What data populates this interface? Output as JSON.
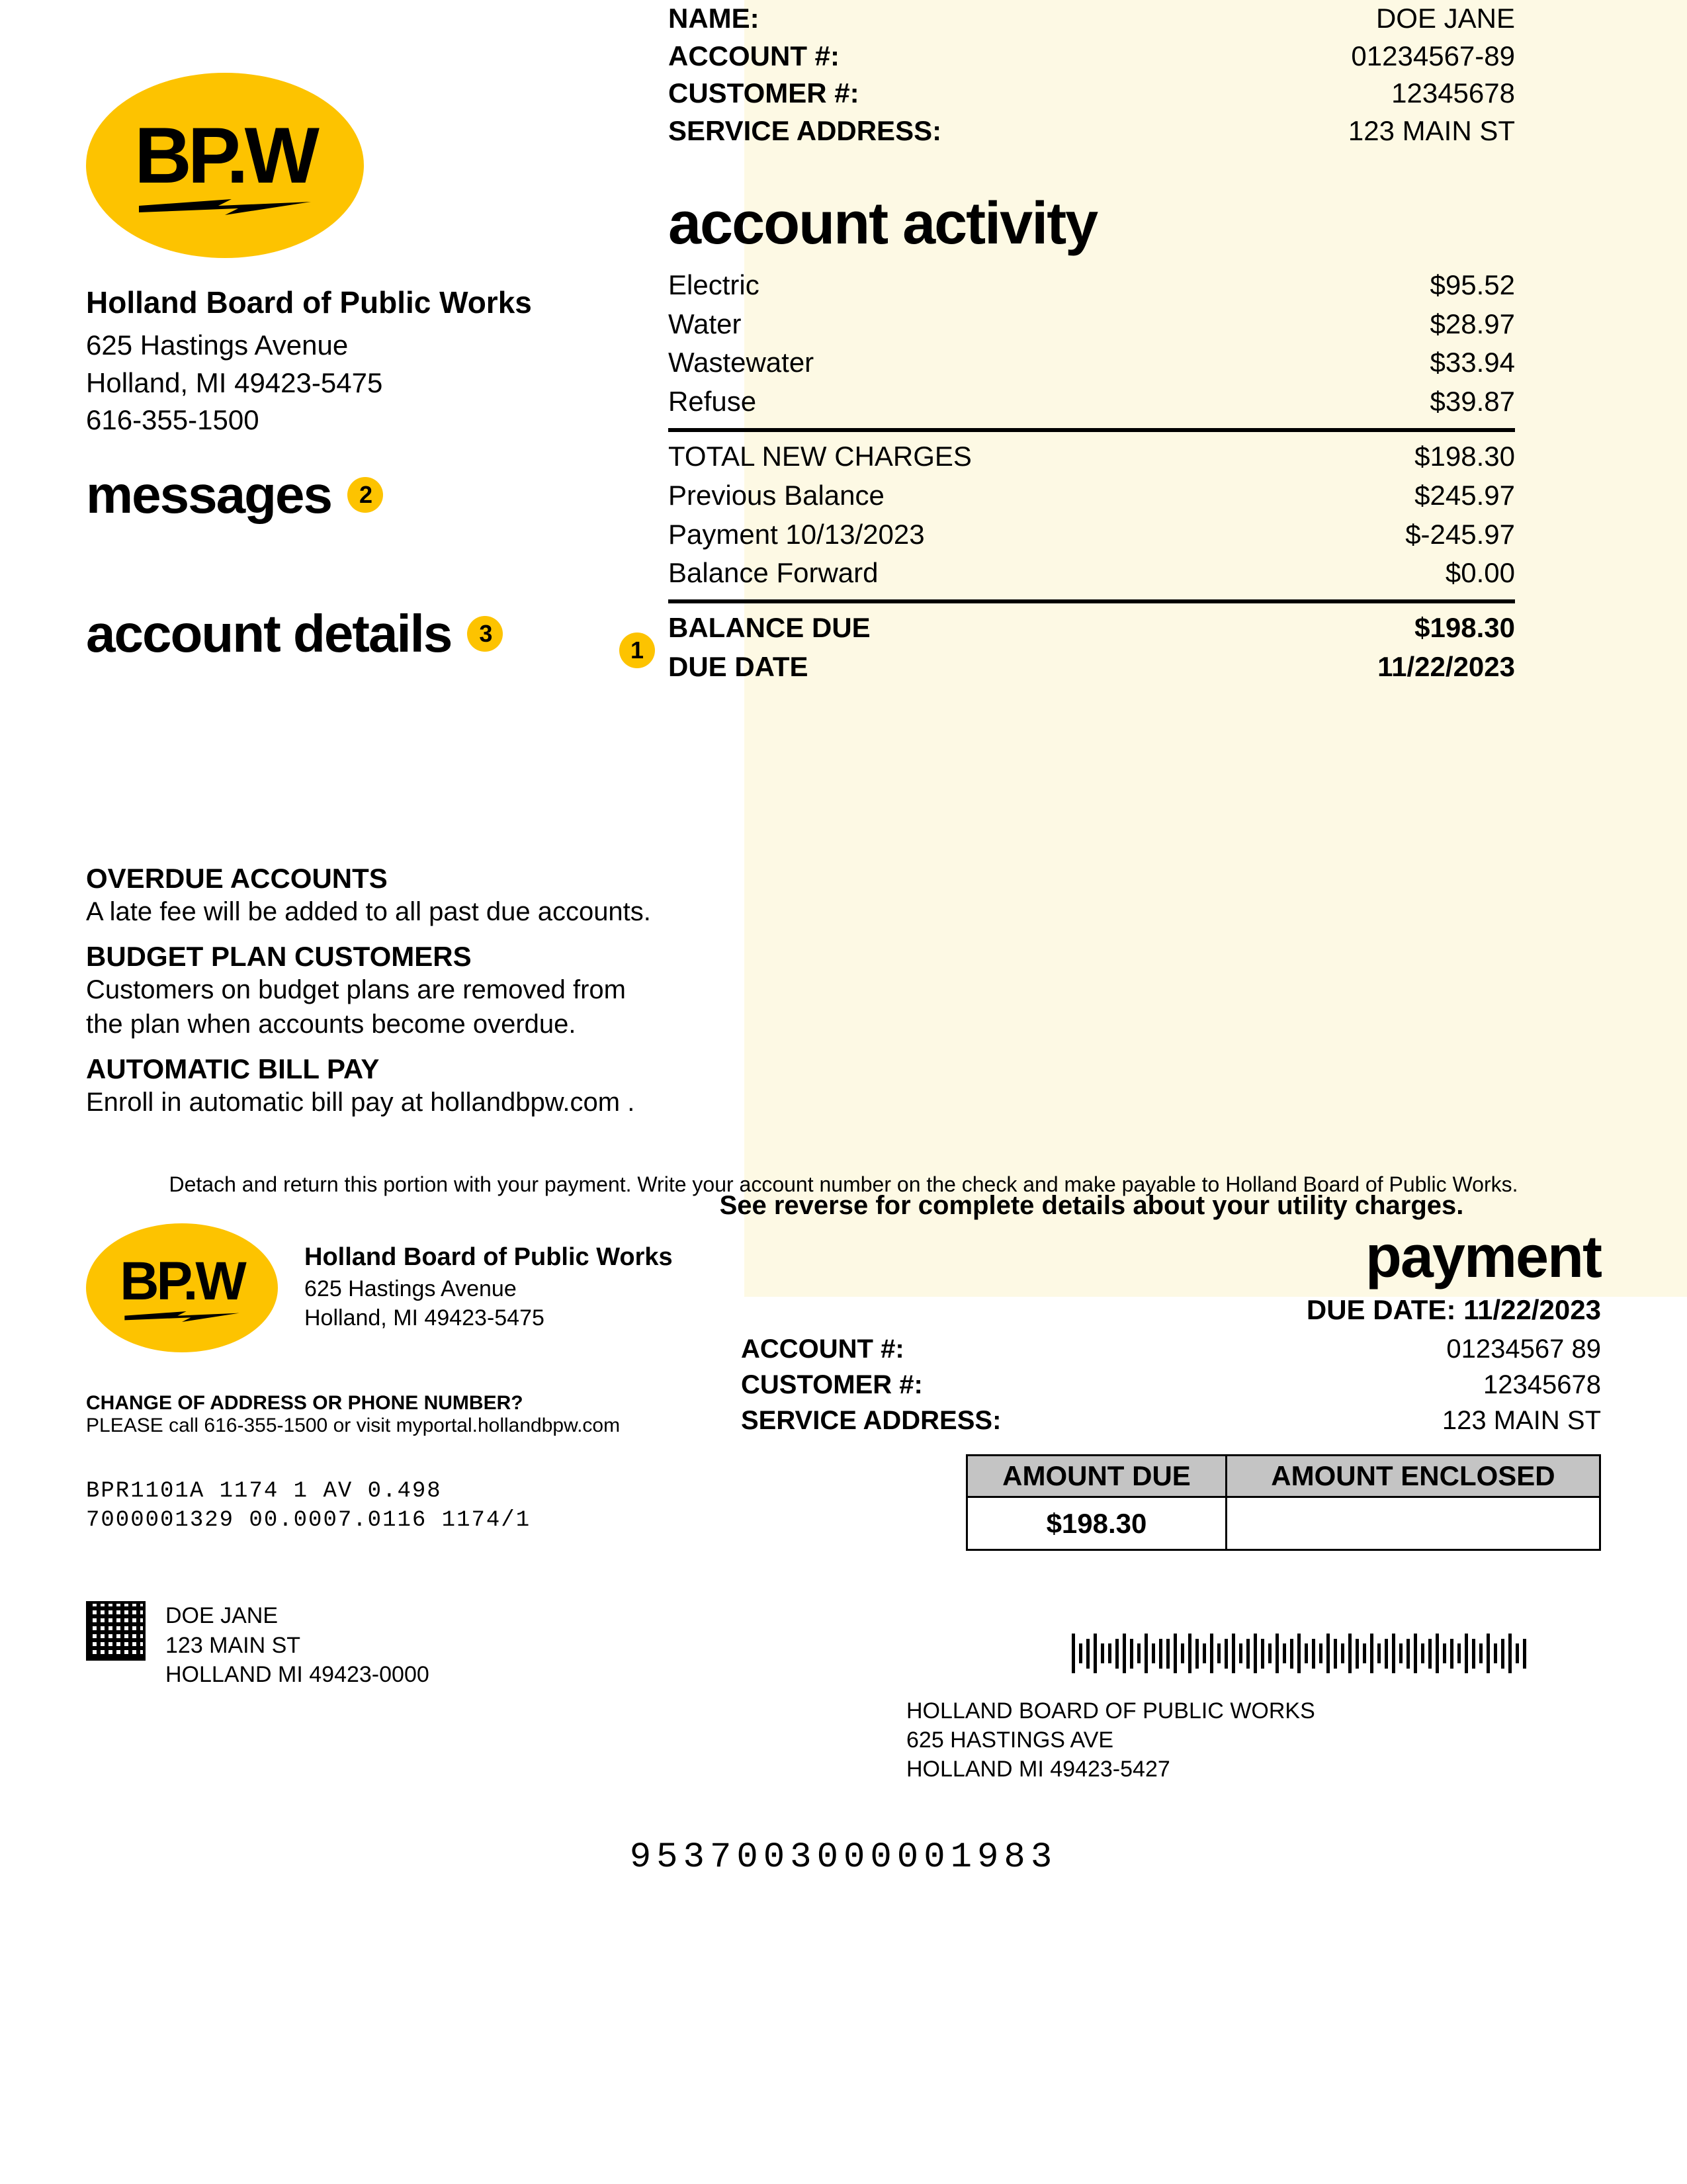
{
  "company": {
    "logo_text": "BP.W",
    "name": "Holland Board of Public Works",
    "street": "625 Hastings Avenue",
    "city_state_zip": "Holland, MI 49423-5475",
    "phone": "616-355-1500"
  },
  "colors": {
    "accent_yellow": "#fdc300",
    "panel_cream": "#fdf9e4",
    "table_header_gray": "#c4c4c4"
  },
  "sections": {
    "messages_label": "messages",
    "messages_badge": "2",
    "account_details_label": "account details",
    "account_details_badge": "3"
  },
  "account": {
    "name_label": "NAME:",
    "name_value": "DOE JANE",
    "account_label": "ACCOUNT #:",
    "account_value": "01234567-89",
    "customer_label": "CUSTOMER #:",
    "customer_value": "12345678",
    "service_addr_label": "SERVICE ADDRESS:",
    "service_addr_value": "123 MAIN ST"
  },
  "activity": {
    "heading": "account activity",
    "lines": [
      {
        "label": "Electric",
        "amount": "$95.52"
      },
      {
        "label": "Water",
        "amount": "$28.97"
      },
      {
        "label": "Wastewater",
        "amount": "$33.94"
      },
      {
        "label": "Refuse",
        "amount": "$39.87"
      }
    ],
    "totals": [
      {
        "label": "TOTAL NEW CHARGES",
        "amount": "$198.30"
      },
      {
        "label": "Previous Balance",
        "amount": "$245.97"
      },
      {
        "label": "Payment  10/13/2023",
        "amount": "$-245.97"
      },
      {
        "label": "Balance Forward",
        "amount": "$0.00"
      }
    ],
    "balance_due_label": "BALANCE DUE",
    "balance_due_value": "$198.30",
    "due_date_label": "DUE DATE",
    "due_date_value": "11/22/2023",
    "badge_1": "1"
  },
  "notes": {
    "overdue_title": "OVERDUE ACCOUNTS",
    "overdue_text": "A late fee will be added to all past due accounts.",
    "budget_title": "BUDGET PLAN CUSTOMERS",
    "budget_text": "Customers on budget plans are removed from the plan when accounts become overdue.",
    "autopay_title": "AUTOMATIC BILL PAY",
    "autopay_text": "Enroll in automatic bill pay at hollandbpw.com ."
  },
  "reverse_note": "See reverse for complete details about your utility charges.",
  "stub": {
    "detach_text": "Detach and return this portion with your payment. Write your account number on the check and make payable to Holland Board of Public Works.",
    "change_title": "CHANGE OF ADDRESS OR PHONE NUMBER?",
    "change_text": "PLEASE call 616-355-1500 or visit myportal.hollandbpw.com",
    "code_line1": "BPR1101A  1174 1 AV 0.498",
    "code_line2": "7000001329 00.0007.0116 1174/1",
    "from_name": "DOE JANE",
    "from_street": "123 MAIN ST",
    "from_city": "HOLLAND MI 49423-0000",
    "payment_heading": "payment",
    "due_date_line": "DUE DATE: 11/22/2023",
    "account_label": "ACCOUNT #:",
    "account_value": "01234567 89",
    "customer_label": "CUSTOMER #:",
    "customer_value": "12345678",
    "service_addr_label": "SERVICE ADDRESS:",
    "service_addr_value": "123  MAIN ST",
    "amount_due_header": "AMOUNT DUE",
    "amount_enclosed_header": "AMOUNT ENCLOSED",
    "amount_due_value": "$198.30",
    "to_name": "HOLLAND BOARD OF PUBLIC WORKS",
    "to_street": "625 HASTINGS AVE",
    "to_city": "HOLLAND MI 49423-5427",
    "ocr_line": "9537003000001983"
  }
}
